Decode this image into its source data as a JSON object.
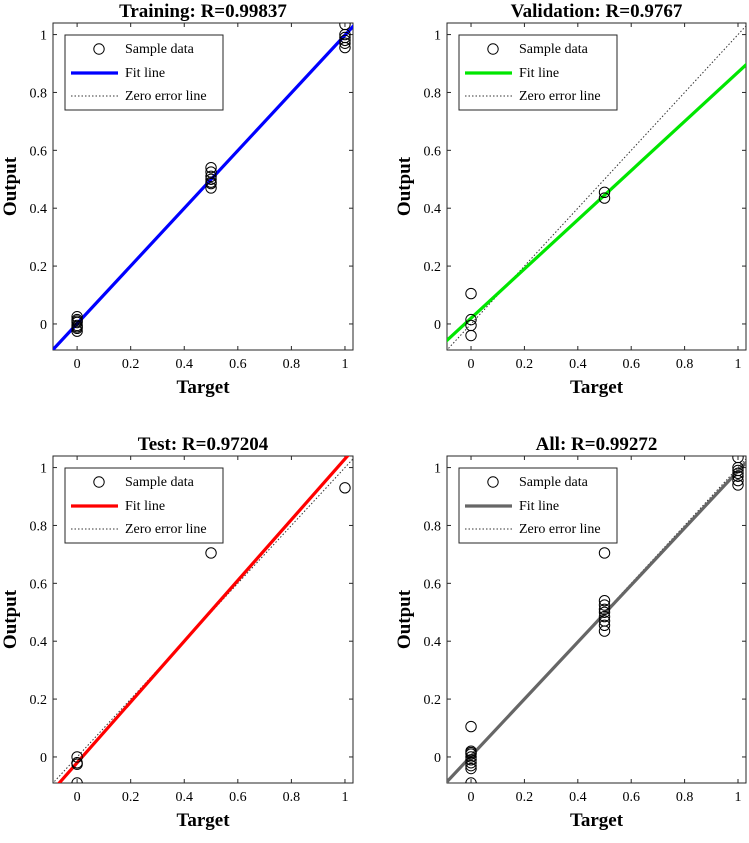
{
  "chart_data": [
    {
      "type": "scatter",
      "title": "Training: R=0.99837",
      "xlabel": "Target",
      "ylabel": "Output",
      "xlim": [
        -0.09,
        1.03
      ],
      "ylim": [
        -0.09,
        1.04
      ],
      "xticks": [
        "0",
        "0.2",
        "0.4",
        "0.6",
        "0.8",
        "1"
      ],
      "yticks": [
        "0",
        "0.2",
        "0.4",
        "0.6",
        "0.8",
        "1"
      ],
      "fit_color": "#0000ff",
      "legend": {
        "position": "top-left",
        "entries": [
          "Sample data",
          "Fit line",
          "Zero error line"
        ]
      },
      "fit_line": {
        "slope": 0.997,
        "intercept": 0.001
      },
      "samples": {
        "x": [
          0,
          0,
          0,
          0,
          0,
          0,
          0,
          0,
          0.5,
          0.5,
          0.5,
          0.5,
          0.5,
          0.5,
          0.5,
          1,
          1,
          1,
          1,
          1,
          1
        ],
        "y": [
          0.025,
          0.015,
          0.005,
          -0.005,
          -0.015,
          -0.025,
          0.01,
          -0.01,
          0.54,
          0.525,
          0.51,
          0.5,
          0.49,
          0.485,
          0.47,
          1.035,
          1.0,
          0.99,
          0.97,
          0.955,
          0.98
        ]
      }
    },
    {
      "type": "scatter",
      "title": "Validation: R=0.9767",
      "xlabel": "Target",
      "ylabel": "Output",
      "xlim": [
        -0.09,
        1.03
      ],
      "ylim": [
        -0.09,
        1.04
      ],
      "xticks": [
        "0",
        "0.2",
        "0.4",
        "0.6",
        "0.8",
        "1"
      ],
      "yticks": [
        "0",
        "0.2",
        "0.4",
        "0.6",
        "0.8",
        "1"
      ],
      "fit_color": "#00e600",
      "legend": {
        "position": "top-left",
        "entries": [
          "Sample data",
          "Fit line",
          "Zero error line"
        ]
      },
      "fit_line": {
        "slope": 0.85,
        "intercept": 0.02
      },
      "samples": {
        "x": [
          0,
          0,
          0,
          0,
          0.5,
          0.5
        ],
        "y": [
          0.105,
          0.015,
          -0.005,
          -0.04,
          0.455,
          0.435
        ]
      }
    },
    {
      "type": "scatter",
      "title": "Test: R=0.97204",
      "xlabel": "Target",
      "ylabel": "Output",
      "xlim": [
        -0.09,
        1.03
      ],
      "ylim": [
        -0.09,
        1.04
      ],
      "xticks": [
        "0",
        "0.2",
        "0.4",
        "0.6",
        "0.8",
        "1"
      ],
      "yticks": [
        "0",
        "0.2",
        "0.4",
        "0.6",
        "0.8",
        "1"
      ],
      "fit_color": "#ff0000",
      "legend": {
        "position": "top-left",
        "entries": [
          "Sample data",
          "Fit line",
          "Zero error line"
        ]
      },
      "fit_line": {
        "slope": 1.05,
        "intercept": -0.02
      },
      "samples": {
        "x": [
          0,
          0,
          0,
          0,
          0.5,
          1
        ],
        "y": [
          0.0,
          -0.02,
          -0.025,
          -0.09,
          0.705,
          0.93
        ]
      }
    },
    {
      "type": "scatter",
      "title": "All: R=0.99272",
      "xlabel": "Target",
      "ylabel": "Output",
      "xlim": [
        -0.09,
        1.03
      ],
      "ylim": [
        -0.09,
        1.04
      ],
      "xticks": [
        "0",
        "0.2",
        "0.4",
        "0.6",
        "0.8",
        "1"
      ],
      "yticks": [
        "0",
        "0.2",
        "0.4",
        "0.6",
        "0.8",
        "1"
      ],
      "fit_color": "#666666",
      "legend": {
        "position": "top-left",
        "entries": [
          "Sample data",
          "Fit line",
          "Zero error line"
        ]
      },
      "fit_line": {
        "slope": 0.985,
        "intercept": 0.003
      },
      "samples": {
        "x": [
          0,
          0,
          0,
          0,
          0,
          0,
          0,
          0,
          0,
          0,
          0.5,
          0.5,
          0.5,
          0.5,
          0.5,
          0.5,
          0.5,
          0.5,
          0.5,
          1,
          1,
          1,
          1,
          1,
          1,
          1
        ],
        "y": [
          0.105,
          0.02,
          0.01,
          0.0,
          -0.01,
          -0.02,
          -0.03,
          -0.04,
          0.015,
          -0.09,
          0.705,
          0.54,
          0.525,
          0.51,
          0.5,
          0.485,
          0.47,
          0.455,
          0.435,
          1.035,
          1.0,
          0.99,
          0.97,
          0.955,
          0.94,
          0.98
        ]
      }
    }
  ]
}
